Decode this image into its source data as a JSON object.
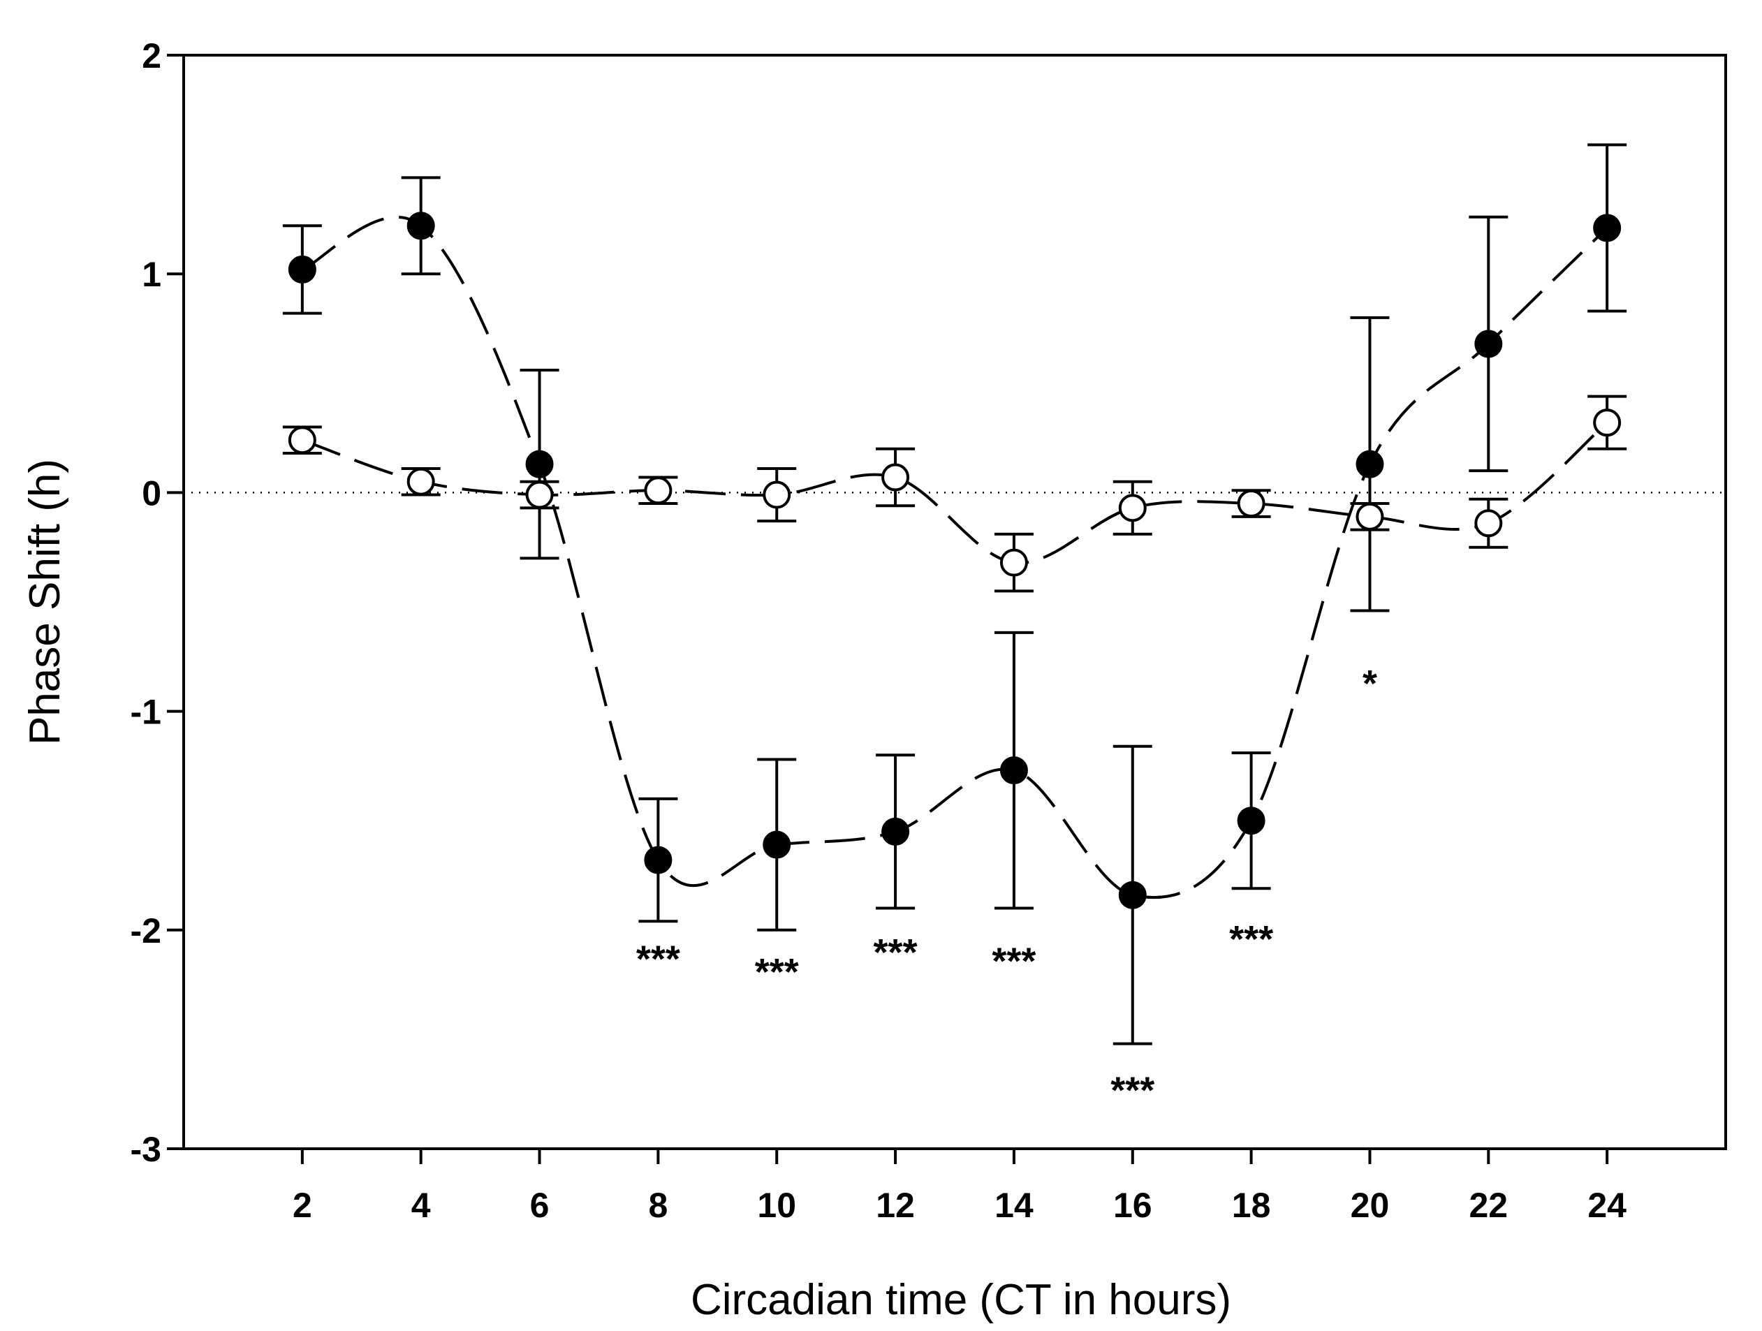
{
  "chart_data": {
    "type": "scatter",
    "title": "",
    "xlabel": "Circadian time (CT in hours)",
    "ylabel": "Phase Shift (h)",
    "xlim": [
      0,
      26
    ],
    "ylim": [
      -3,
      2
    ],
    "x": [
      2,
      4,
      6,
      8,
      10,
      12,
      14,
      16,
      18,
      20,
      22,
      24
    ],
    "x_ticks": [
      "2",
      "4",
      "6",
      "8",
      "10",
      "12",
      "14",
      "16",
      "18",
      "20",
      "22",
      "24"
    ],
    "y_ticks": [
      "-3",
      "-2",
      "-1",
      "0",
      "1",
      "2"
    ],
    "reference_line": {
      "y": 0,
      "style": "dotted"
    },
    "series": [
      {
        "name": "filled",
        "marker": "filled-circle",
        "values": [
          1.02,
          1.22,
          0.13,
          -1.68,
          -1.61,
          -1.55,
          -1.27,
          -1.84,
          -1.5,
          0.13,
          0.68,
          1.21
        ],
        "error": [
          0.2,
          0.22,
          0.43,
          0.28,
          0.39,
          0.35,
          0.63,
          0.68,
          0.31,
          0.67,
          0.58,
          0.38
        ]
      },
      {
        "name": "open",
        "marker": "open-circle",
        "values": [
          0.24,
          0.05,
          -0.01,
          0.01,
          -0.01,
          0.07,
          -0.32,
          -0.07,
          -0.05,
          -0.11,
          -0.14,
          0.32
        ],
        "error": [
          0.06,
          0.06,
          0.06,
          0.06,
          0.12,
          0.13,
          0.13,
          0.12,
          0.06,
          0.06,
          0.11,
          0.12
        ]
      }
    ],
    "annotations": [
      {
        "x": 8,
        "y": -2.12,
        "text": "***"
      },
      {
        "x": 10,
        "y": -2.18,
        "text": "***"
      },
      {
        "x": 12,
        "y": -2.09,
        "text": "***"
      },
      {
        "x": 14,
        "y": -2.13,
        "text": "***"
      },
      {
        "x": 16,
        "y": -2.72,
        "text": "***"
      },
      {
        "x": 18,
        "y": -2.03,
        "text": "***"
      },
      {
        "x": 20,
        "y": -0.86,
        "text": "*"
      }
    ],
    "colors": {
      "ink": "#000000",
      "background": "#ffffff"
    }
  }
}
